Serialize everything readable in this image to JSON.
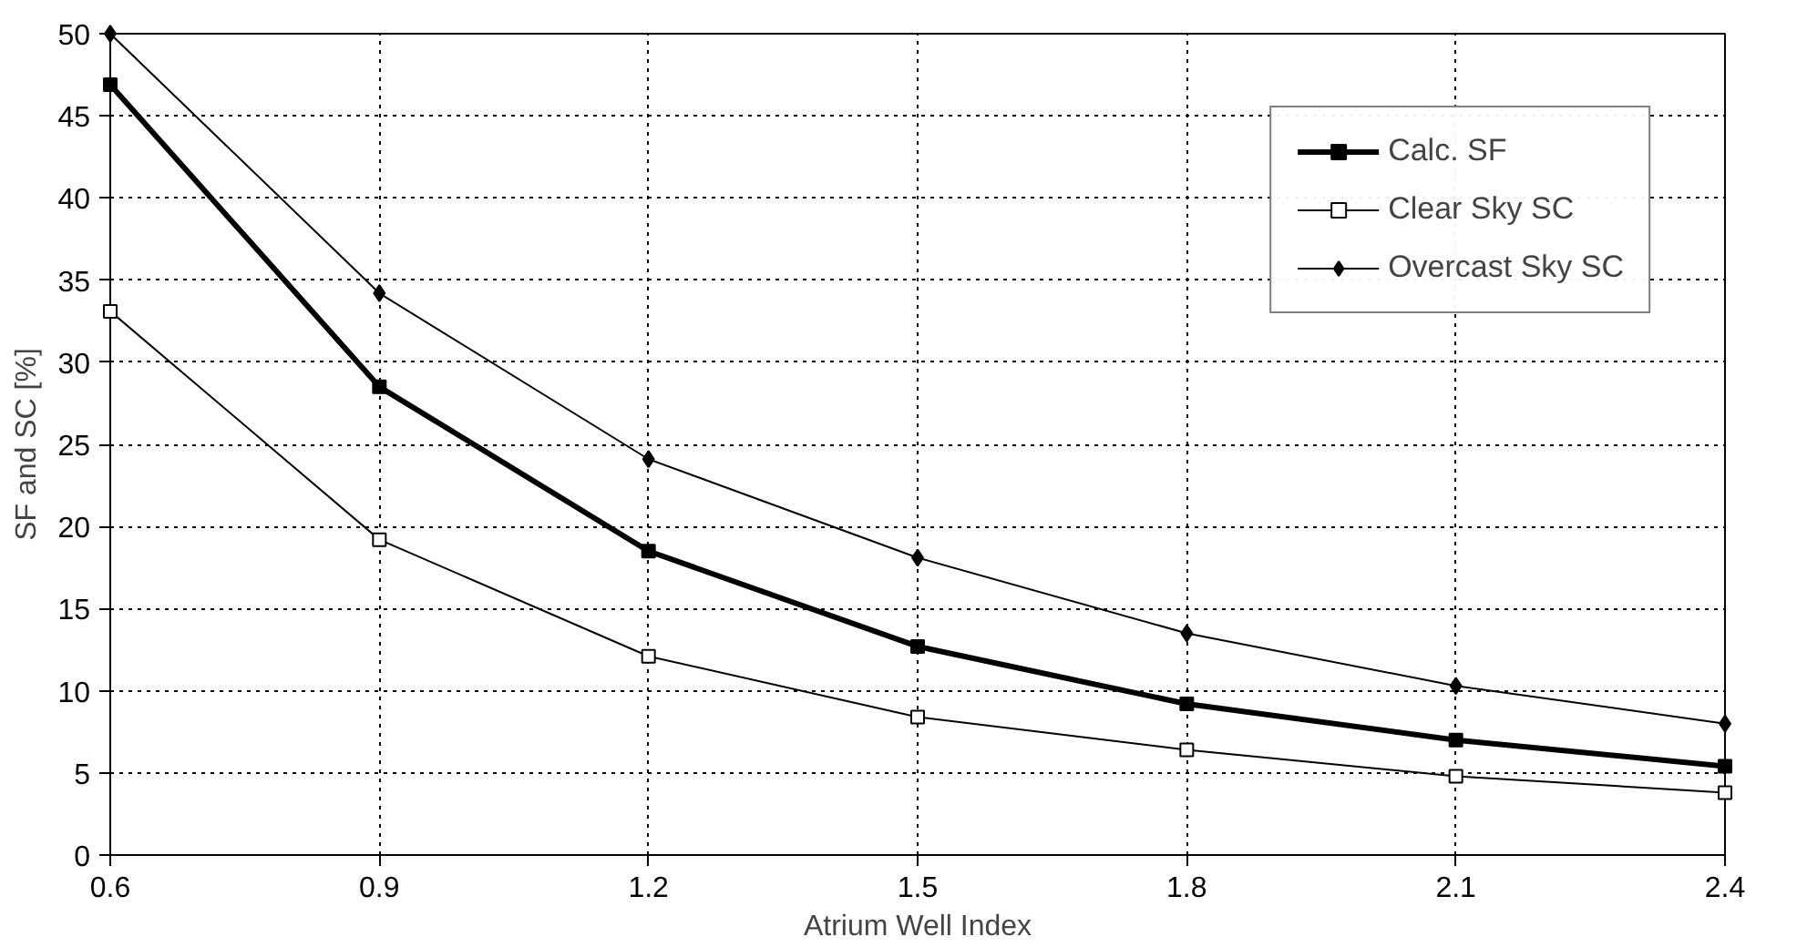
{
  "chart_data": {
    "type": "line",
    "xlabel": "Atrium Well Index",
    "ylabel": "SF and SC [%]",
    "x": [
      0.6,
      0.9,
      1.2,
      1.5,
      1.8,
      2.1,
      2.4
    ],
    "series": [
      {
        "name": "Calc. SF",
        "color": "#000000",
        "marker": "square",
        "values": [
          46.9,
          28.5,
          18.5,
          12.7,
          9.2,
          7.0,
          5.4
        ]
      },
      {
        "name": "Clear Sky SC",
        "color": "#000000",
        "marker": "square",
        "values": [
          33.1,
          19.2,
          12.1,
          8.4,
          6.4,
          4.8,
          3.8
        ]
      },
      {
        "name": "Overcast Sky SC",
        "color": "#000000",
        "marker": "diamond",
        "values": [
          50.0,
          34.2,
          24.1,
          18.1,
          13.5,
          10.3,
          8.0
        ]
      }
    ],
    "xlim": [
      0.6,
      2.4
    ],
    "xticks": [
      0.6,
      0.9,
      1.2,
      1.5,
      1.8,
      2.1,
      2.4
    ],
    "ylim": [
      0,
      50
    ],
    "yticks": [
      0,
      5,
      10,
      15,
      20,
      25,
      30,
      35,
      40,
      45,
      50
    ],
    "grid": true,
    "legend": "top right",
    "line_style": "solid"
  }
}
